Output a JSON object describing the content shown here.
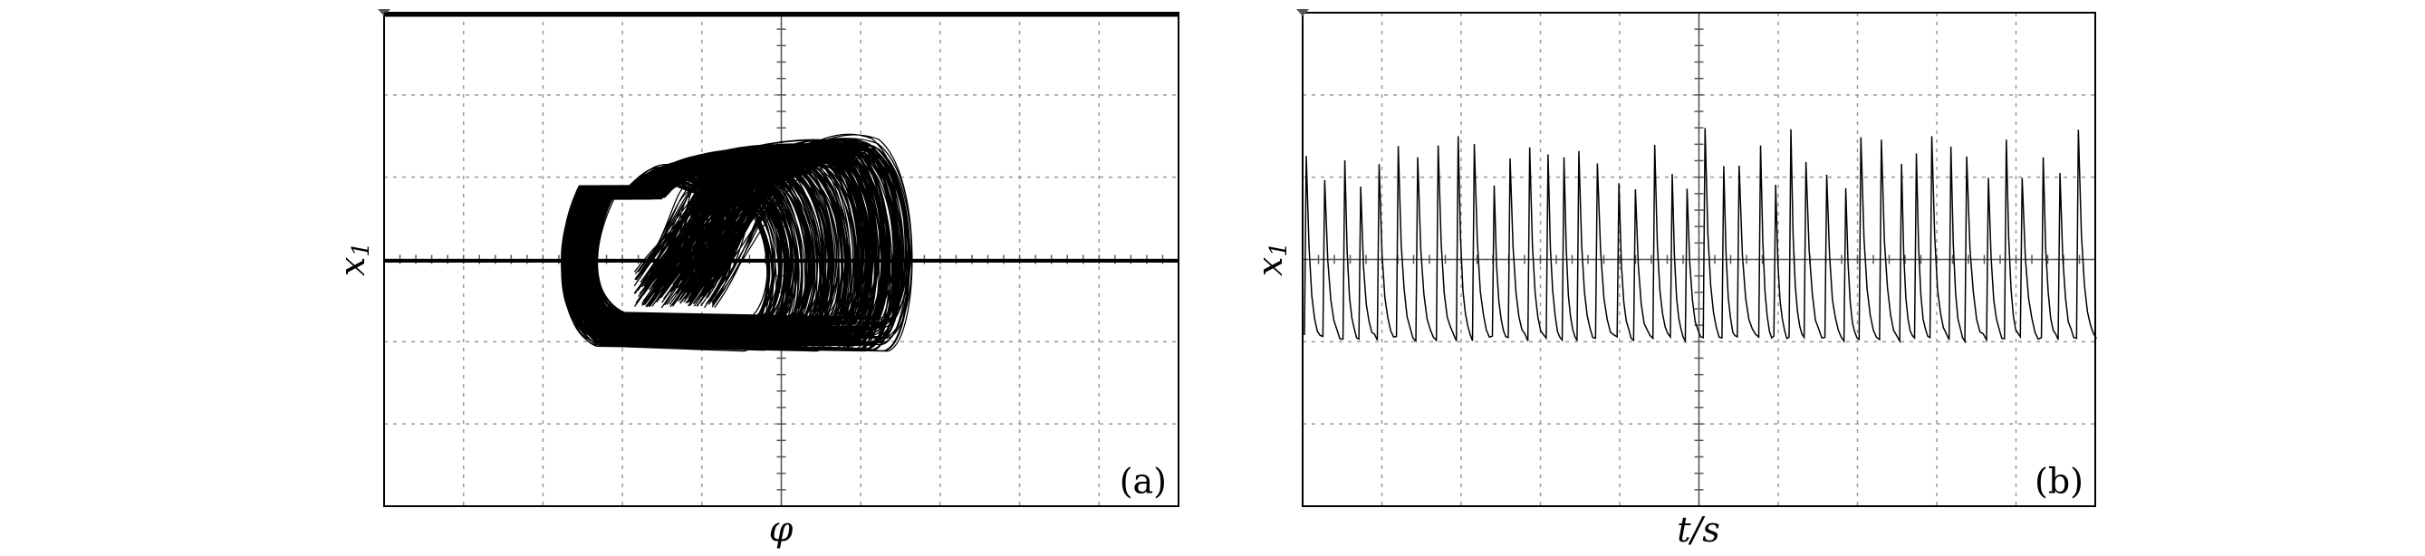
{
  "panels": [
    {
      "ylabel": "x",
      "ylabel_subscript": "1",
      "xlabel": "φ",
      "tag": "(a)"
    },
    {
      "ylabel": "x",
      "ylabel_subscript": "1",
      "xlabel": "t/s",
      "tag": "(b)"
    }
  ]
}
